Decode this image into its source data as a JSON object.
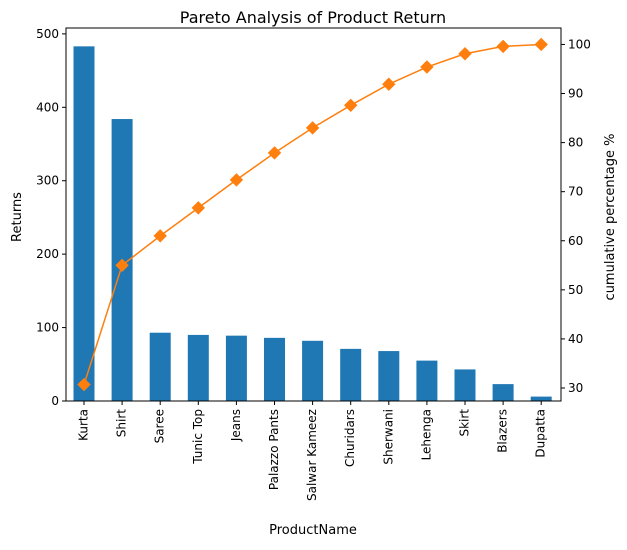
{
  "chart_data": {
    "type": "bar",
    "title": "Pareto Analysis of Product Return",
    "xlabel": "ProductName",
    "ylabel": "Returns",
    "y2label": "cumulative percentage %",
    "categories": [
      "Kurta",
      "Shirt",
      "Saree",
      "Tunic Top",
      "Jeans",
      "Palazzo Pants",
      "Salwar Kameez",
      "Churidars",
      "Sherwani",
      "Lehenga",
      "Skirt",
      "Blazers",
      "Dupatta"
    ],
    "series": [
      {
        "type": "bar",
        "axis": "left",
        "values": [
          483,
          384,
          93,
          90,
          89,
          86,
          82,
          71,
          68,
          55,
          43,
          23,
          6
        ]
      },
      {
        "type": "line",
        "axis": "right",
        "marker": "diamond",
        "values": [
          30.7,
          55.0,
          61.0,
          66.7,
          72.4,
          77.9,
          83.0,
          87.6,
          91.9,
          95.4,
          98.1,
          99.6,
          100.0
        ]
      }
    ],
    "ylim": [
      0,
      508
    ],
    "y2lim": [
      27.35,
      103.35
    ],
    "yticks": [
      0,
      100,
      200,
      300,
      400,
      500
    ],
    "y2ticks": [
      30,
      40,
      50,
      60,
      70,
      80,
      90,
      100
    ],
    "grid": false,
    "colors": {
      "bars": "#1f77b4",
      "line": "#ff7f0e"
    }
  }
}
